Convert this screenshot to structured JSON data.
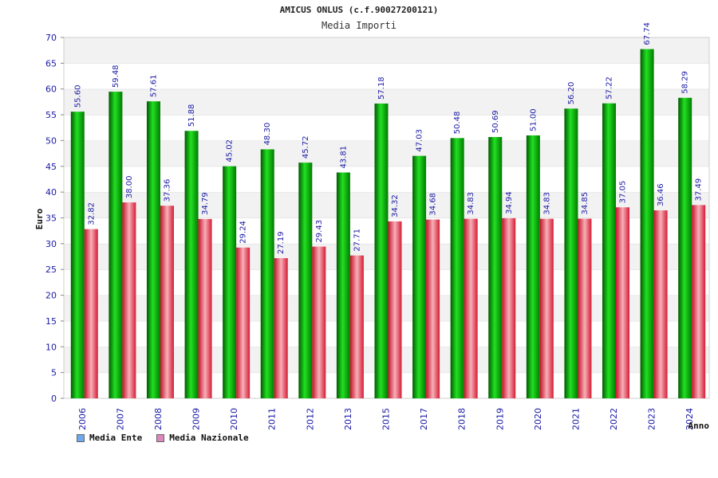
{
  "title": "AMICUS ONLUS (c.f.90027200121)",
  "chart_data": {
    "type": "bar",
    "title": "Media Importi",
    "xlabel": "Anno",
    "ylabel": "Euro",
    "ylim": [
      0,
      70
    ],
    "ytick_step": 5,
    "grid": true,
    "legend_position": "bottom-left",
    "categories": [
      "2006",
      "2007",
      "2008",
      "2009",
      "2010",
      "2011",
      "2012",
      "2013",
      "2015",
      "2017",
      "2018",
      "2019",
      "2020",
      "2021",
      "2022",
      "2023",
      "2024"
    ],
    "series": [
      {
        "name": "Media Ente",
        "color": "#00aa00",
        "legend_color": "#6fa8ec",
        "values": [
          55.6,
          59.48,
          57.61,
          51.88,
          45.02,
          48.3,
          45.72,
          43.81,
          57.18,
          47.03,
          50.48,
          50.69,
          51.0,
          56.2,
          57.22,
          67.74,
          58.29
        ],
        "labels": [
          "55.60",
          "59.48",
          "57.61",
          "51.88",
          "45.02",
          "48.30",
          "45.72",
          "43.81",
          "57.18",
          "47.03",
          "50.48",
          "50.69",
          "51.00",
          "56.20",
          "57.22",
          "67.74",
          "58.29"
        ]
      },
      {
        "name": "Media Nazionale",
        "color": "#e8333f",
        "legend_color": "#dd88bb",
        "values": [
          32.82,
          38.0,
          37.36,
          34.79,
          29.24,
          27.19,
          29.43,
          27.71,
          34.32,
          34.68,
          34.83,
          34.94,
          34.83,
          34.85,
          37.05,
          36.46,
          37.49
        ],
        "labels": [
          "32.82",
          "38.00",
          "37.36",
          "34.79",
          "29.24",
          "27.19",
          "29.43",
          "27.71",
          "34.32",
          "34.68",
          "34.83",
          "34.94",
          "34.83",
          "34.85",
          "37.05",
          "36.46",
          "37.49"
        ]
      }
    ]
  }
}
